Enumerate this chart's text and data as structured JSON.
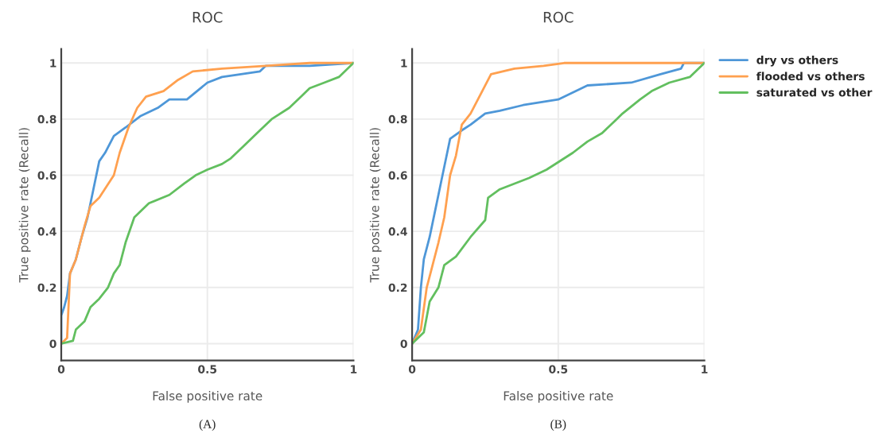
{
  "chart_data": [
    {
      "type": "line",
      "title": "ROC",
      "xlabel": "False positive rate",
      "ylabel": "True positive rate (Recall)",
      "annotations": [
        "(A)"
      ],
      "xlim": [
        0,
        1
      ],
      "ylim": [
        -0.06,
        1.05
      ],
      "xticks": [
        0,
        0.5,
        1
      ],
      "yticks": [
        0,
        0.2,
        0.4,
        0.6,
        0.8,
        1
      ],
      "grid": true,
      "legend": false,
      "marker": "none",
      "line_style": "solid",
      "series": [
        {
          "color": "#4e97d8",
          "x": [
            0,
            0,
            0.01,
            0.02,
            0.03,
            0.05,
            0.07,
            0.09,
            0.11,
            0.13,
            0.15,
            0.18,
            0.22,
            0.27,
            0.33,
            0.37,
            0.43,
            0.5,
            0.55,
            0.68,
            0.7,
            0.85,
            1
          ],
          "values": [
            0,
            0.1,
            0.13,
            0.17,
            0.25,
            0.3,
            0.38,
            0.45,
            0.55,
            0.65,
            0.68,
            0.74,
            0.77,
            0.81,
            0.84,
            0.87,
            0.87,
            0.93,
            0.95,
            0.97,
            0.99,
            0.99,
            1
          ]
        },
        {
          "color": "#ffa04f",
          "x": [
            0,
            0.02,
            0.03,
            0.05,
            0.08,
            0.1,
            0.13,
            0.18,
            0.2,
            0.23,
            0.26,
            0.29,
            0.35,
            0.4,
            0.45,
            0.55,
            0.7,
            0.85,
            1
          ],
          "values": [
            0,
            0.02,
            0.25,
            0.3,
            0.42,
            0.49,
            0.52,
            0.6,
            0.68,
            0.77,
            0.84,
            0.88,
            0.9,
            0.94,
            0.97,
            0.98,
            0.99,
            1,
            1
          ]
        },
        {
          "color": "#62bf5f",
          "x": [
            0,
            0.04,
            0.05,
            0.08,
            0.1,
            0.13,
            0.16,
            0.18,
            0.2,
            0.22,
            0.25,
            0.3,
            0.37,
            0.42,
            0.46,
            0.5,
            0.55,
            0.58,
            0.62,
            0.67,
            0.72,
            0.78,
            0.82,
            0.85,
            0.9,
            0.95,
            1
          ],
          "values": [
            0,
            0.01,
            0.05,
            0.08,
            0.13,
            0.16,
            0.2,
            0.25,
            0.28,
            0.36,
            0.45,
            0.5,
            0.53,
            0.57,
            0.6,
            0.62,
            0.64,
            0.66,
            0.7,
            0.75,
            0.8,
            0.84,
            0.88,
            0.91,
            0.93,
            0.95,
            1
          ]
        }
      ]
    },
    {
      "type": "line",
      "title": "ROC",
      "xlabel": "False positive rate",
      "ylabel": "True positive rate (Recall)",
      "annotations": [
        "(B)"
      ],
      "xlim": [
        0,
        1
      ],
      "ylim": [
        -0.06,
        1.05
      ],
      "xticks": [
        0,
        0.5,
        1
      ],
      "yticks": [
        0,
        0.2,
        0.4,
        0.6,
        0.8,
        1
      ],
      "grid": true,
      "legend": "right",
      "marker": "none",
      "line_style": "solid",
      "series": [
        {
          "name": "dry vs others",
          "color": "#4e97d8",
          "x": [
            0,
            0.02,
            0.03,
            0.04,
            0.06,
            0.08,
            0.1,
            0.12,
            0.13,
            0.17,
            0.2,
            0.25,
            0.3,
            0.38,
            0.5,
            0.6,
            0.75,
            0.85,
            0.92,
            0.93,
            1
          ],
          "values": [
            0,
            0.05,
            0.2,
            0.3,
            0.38,
            0.48,
            0.58,
            0.68,
            0.73,
            0.76,
            0.78,
            0.82,
            0.83,
            0.85,
            0.87,
            0.92,
            0.93,
            0.96,
            0.98,
            1,
            1
          ]
        },
        {
          "name": "flooded vs others",
          "color": "#ffa04f",
          "x": [
            0,
            0.03,
            0.05,
            0.07,
            0.09,
            0.11,
            0.13,
            0.15,
            0.17,
            0.2,
            0.24,
            0.27,
            0.35,
            0.45,
            0.52,
            1
          ],
          "values": [
            0,
            0.05,
            0.2,
            0.28,
            0.36,
            0.45,
            0.6,
            0.67,
            0.78,
            0.82,
            0.9,
            0.96,
            0.98,
            0.99,
            1,
            1
          ]
        },
        {
          "name": "saturated vs other",
          "color": "#62bf5f",
          "x": [
            0,
            0.04,
            0.06,
            0.09,
            0.11,
            0.15,
            0.2,
            0.25,
            0.26,
            0.3,
            0.4,
            0.46,
            0.55,
            0.6,
            0.65,
            0.7,
            0.72,
            0.78,
            0.82,
            0.88,
            0.95,
            1
          ],
          "values": [
            0,
            0.04,
            0.15,
            0.2,
            0.28,
            0.31,
            0.38,
            0.44,
            0.52,
            0.55,
            0.59,
            0.62,
            0.68,
            0.72,
            0.75,
            0.8,
            0.82,
            0.87,
            0.9,
            0.93,
            0.95,
            1
          ]
        }
      ]
    }
  ]
}
